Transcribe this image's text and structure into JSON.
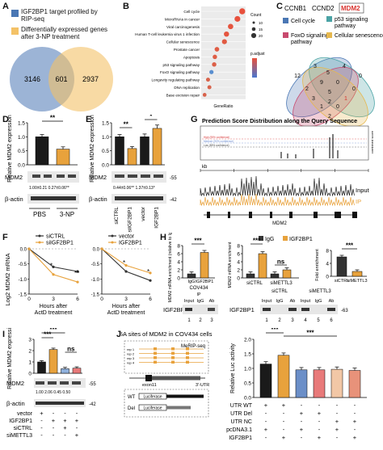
{
  "panels": {
    "A": {
      "letter": "A",
      "legend": [
        {
          "text": "IGF2BP1 target profiled by RIP-seq",
          "color": "#4a77b4"
        },
        {
          "text": "Differentially expressed genes after 3-NP treatment",
          "color": "#f4c267"
        }
      ],
      "counts": {
        "left": "3146",
        "overlap": "601",
        "right": "2937"
      }
    },
    "B": {
      "letter": "B",
      "xlabel": "GeneRatio",
      "legend_count_title": "Count",
      "legend_count_values": [
        "10",
        "15",
        "20"
      ],
      "legend_padj_title": "p.adjust",
      "terms": [
        {
          "name": "Cell cycle",
          "x": 0.095,
          "size": 20,
          "color": "#e8503c"
        },
        {
          "name": "MicroRNAs in cancer",
          "x": 0.088,
          "size": 19,
          "color": "#e8503c"
        },
        {
          "name": "Viral carcinogenesis",
          "x": 0.078,
          "size": 17,
          "color": "#e5543e"
        },
        {
          "name": "Human T-cell leukemia virus 1 infection",
          "x": 0.072,
          "size": 16,
          "color": "#e5543e"
        },
        {
          "name": "Cellular senescence",
          "x": 0.069,
          "size": 15,
          "color": "#e15a42"
        },
        {
          "name": "Prostate cancer",
          "x": 0.058,
          "size": 13,
          "color": "#e05c44"
        },
        {
          "name": "Apoptosis",
          "x": 0.055,
          "size": 12,
          "color": "#de5e46"
        },
        {
          "name": "p53 signaling pathway",
          "x": 0.054,
          "size": 12,
          "color": "#dc6048"
        },
        {
          "name": "FoxO signaling pathway",
          "x": 0.05,
          "size": 11,
          "color": "#5a8fd0"
        },
        {
          "name": "Longevity regulating pathway",
          "x": 0.045,
          "size": 10,
          "color": "#d8634c"
        },
        {
          "name": "DNA replication",
          "x": 0.047,
          "size": 10,
          "color": "#d8634c"
        },
        {
          "name": "Base excision repair",
          "x": 0.04,
          "size": 9,
          "color": "#d8634c"
        }
      ]
    },
    "C": {
      "letter": "C",
      "genes": [
        "CCNB1",
        "CCND2",
        "MDM2"
      ],
      "sets": [
        {
          "name": "Cell cycle",
          "color": "#4a77b4"
        },
        {
          "name": "p53 signaling pathway",
          "color": "#4aa3a5"
        },
        {
          "name": "FoxO signaling pathway",
          "color": "#c84a6e"
        },
        {
          "name": "Cellular senescence",
          "color": "#e6b84e"
        }
      ],
      "numbers": [
        "12",
        "3",
        "5",
        "4",
        "0",
        "2",
        "9",
        "0",
        "0",
        "3",
        "5",
        "1",
        "1",
        "0",
        "2",
        "2"
      ]
    },
    "D": {
      "letter": "D",
      "ylabel": "Relative MDM2 expression",
      "yticks": [
        "0.0",
        "0.5",
        "1.0",
        "1.5"
      ],
      "ylim": [
        0,
        1.5
      ],
      "bars": [
        {
          "label": "PBS",
          "value": 1.0,
          "err": 0.08,
          "color": "#1a1a1a"
        },
        {
          "label": "3-NP",
          "value": 0.56,
          "err": 0.08,
          "color": "#e8a23c"
        }
      ],
      "sig": "**",
      "blot_labels": [
        "MDM2",
        "β-actin"
      ],
      "quant": "1.00±0.21   0.27±0.06**",
      "group_labels": [
        "PBS",
        "3-NP"
      ]
    },
    "E": {
      "letter": "E",
      "ylabel": "Relative MDM2 expression",
      "yticks": [
        "0.0",
        "0.5",
        "1.0",
        "1.5"
      ],
      "ylim": [
        0,
        1.5
      ],
      "bars": [
        {
          "label": "siCTRL",
          "value": 1.0,
          "err": 0.08,
          "color": "#1a1a1a"
        },
        {
          "label": "siIGF2BP1",
          "value": 0.58,
          "err": 0.07,
          "color": "#e8a23c"
        },
        {
          "label": "vector",
          "value": 1.0,
          "err": 0.1,
          "color": "#1a1a1a"
        },
        {
          "label": "IGF2BP1",
          "value": 1.3,
          "err": 0.12,
          "color": "#e8a23c"
        }
      ],
      "sig": [
        "**",
        "*"
      ],
      "blot_labels": [
        "MDM2",
        "β-actin"
      ],
      "mw": [
        "55",
        "42"
      ],
      "quant": "0.44±0.06**   1.37±0.13*"
    },
    "F": {
      "letter": "F",
      "ylabel": "Log2 MDM2 mRNA",
      "xlabel": "Hours after ActD treatment",
      "xticks": [
        "0",
        "3",
        "6"
      ],
      "yticks": [
        "0.0",
        "-0.5",
        "-1.0",
        "-1.5"
      ],
      "plots": [
        {
          "series": [
            {
              "name": "siCTRL",
              "values": [
                0,
                -0.6,
                -0.75
              ],
              "color": "#333333"
            },
            {
              "name": "siIGF2BP1",
              "values": [
                0,
                -0.85,
                -1.1
              ],
              "color": "#e8a23c"
            }
          ],
          "sig": [
            "*",
            "**"
          ]
        },
        {
          "series": [
            {
              "name": "vector",
              "values": [
                0,
                -0.75,
                -1.05
              ],
              "color": "#333333"
            },
            {
              "name": "IGF2BP1",
              "values": [
                0,
                -0.55,
                -0.8
              ],
              "color": "#e8a23c"
            }
          ],
          "sig": [
            "*",
            "*"
          ]
        }
      ]
    },
    "G": {
      "letter": "G",
      "title": "Prediction Score Distribution along the Query Sequence",
      "scale": "kb",
      "track_labels": [
        "Input",
        "IP"
      ],
      "gene": "MDM2",
      "right_labels": [
        "combined score"
      ],
      "series_labels": [
        "High (95% confidence)",
        "Medium (90% confidence)",
        "Low (85% confidence)"
      ]
    },
    "H": {
      "letter": "H",
      "legend": [
        {
          "text": "IgG",
          "color": "#333333"
        },
        {
          "text": "IGF2BP1",
          "color": "#e8a23c"
        }
      ],
      "charts": [
        {
          "ylabel": "MDM2 mRNA enrichment (relative to IgG)",
          "bars": [
            {
              "label": "IgG",
              "value": 1
            },
            {
              "label": "IGF2BP1",
              "value": 6.3
            }
          ],
          "sig": "***",
          "sublabel": "COV434"
        },
        {
          "ylabel": "MDM2 mRNA enrichment",
          "bars": [
            {
              "label": "siCTRL IgG",
              "value": 1
            },
            {
              "label": "siCTRL IGF2BP1",
              "value": 6
            },
            {
              "label": "siMETTL3 IgG",
              "value": 1
            },
            {
              "label": "siMETTL3 IGF2BP1",
              "value": 2
            }
          ],
          "sig": [
            "***",
            "ns"
          ],
          "sublabel": "siCTRL  siMETTL3"
        },
        {
          "ylabel": "Fold enrichment",
          "bars": [
            {
              "label": "siCTRL",
              "value": 6
            },
            {
              "label": "siMETTL3",
              "value": 1.5
            }
          ],
          "sig": "***"
        }
      ],
      "blot_label": "IGF2BP1",
      "lanes_left": [
        "Input",
        "IgG",
        "Ab"
      ],
      "lanes_right": [
        "Input",
        "IgG",
        "Ab",
        "Input",
        "IgG",
        "Ab"
      ],
      "lane_nums_left": [
        "1",
        "2",
        "3"
      ],
      "lane_nums_right": [
        "1",
        "2",
        "3",
        "4",
        "5",
        "6"
      ],
      "mw": "63",
      "ip_label": "IP",
      "cond": [
        "siCTRL",
        "siMETTL3"
      ]
    },
    "I": {
      "letter": "I",
      "ylabel": "Relative MDM2 expression",
      "yticks": [
        "0",
        "1",
        "2",
        "3"
      ],
      "ylim": [
        0,
        3
      ],
      "bars": [
        {
          "value": 1.0,
          "color": "#1a1a1a"
        },
        {
          "value": 2.1,
          "color": "#e8a23c"
        },
        {
          "value": 0.4,
          "color": "#8fb0dc"
        },
        {
          "value": 0.45,
          "color": "#e87a7a"
        }
      ],
      "sig": [
        "***",
        "***",
        "ns"
      ],
      "blot_labels": [
        "MDM2",
        "β-actin"
      ],
      "mw": [
        "55",
        "42"
      ],
      "quant": "1.00 2.06 0.45 0.50",
      "rows": [
        {
          "label": "vector",
          "marks": [
            "+",
            "-",
            "-",
            "-"
          ]
        },
        {
          "label": "IGF2BP1",
          "marks": [
            "-",
            "+",
            "+",
            "+"
          ]
        },
        {
          "label": "siCTRL",
          "marks": [
            "-",
            "-",
            "+",
            "-"
          ]
        },
        {
          "label": "siMETTL3",
          "marks": [
            "-",
            "-",
            "-",
            "+"
          ]
        }
      ]
    },
    "J": {
      "letter": "J",
      "title": "m6A sites of MDM2 in COV434 cells",
      "track": "MeRIP-seq",
      "reps": [
        "rep 1",
        "rep 2",
        "rep 3",
        "rep 4"
      ],
      "exon": "exon11",
      "utr": "3'-UTR",
      "constructs": [
        {
          "name": "WT",
          "label": "Luciferase"
        },
        {
          "name": "Del",
          "label": "Luciferase"
        }
      ],
      "ylabel": "Relative Luc activity",
      "yticks": [
        "0.0",
        "0.5",
        "1.0",
        "1.5",
        "2.0"
      ],
      "ylim": [
        0,
        2
      ],
      "bars": [
        {
          "value": 1.15,
          "color": "#1a1a1a"
        },
        {
          "value": 1.45,
          "color": "#e8a23c"
        },
        {
          "value": 0.95,
          "color": "#6b8fc8"
        },
        {
          "value": 0.95,
          "color": "#e87a7a"
        },
        {
          "value": 0.97,
          "color": "#f2c7a6"
        },
        {
          "value": 0.93,
          "color": "#e8927a"
        }
      ],
      "sig": [
        "***",
        "***"
      ],
      "rows": [
        {
          "label": "UTR WT",
          "marks": [
            "+",
            "+",
            "-",
            "-",
            "-",
            "-"
          ]
        },
        {
          "label": "UTR Del",
          "marks": [
            "-",
            "-",
            "+",
            "+",
            "-",
            "-"
          ]
        },
        {
          "label": "UTR NC",
          "marks": [
            "-",
            "-",
            "-",
            "-",
            "+",
            "+"
          ]
        },
        {
          "label": "pcDNA3.1",
          "marks": [
            "+",
            "-",
            "+",
            "-",
            "+",
            "-"
          ]
        },
        {
          "label": "IGF2BP1",
          "marks": [
            "-",
            "+",
            "-",
            "+",
            "-",
            "+"
          ]
        }
      ]
    }
  }
}
